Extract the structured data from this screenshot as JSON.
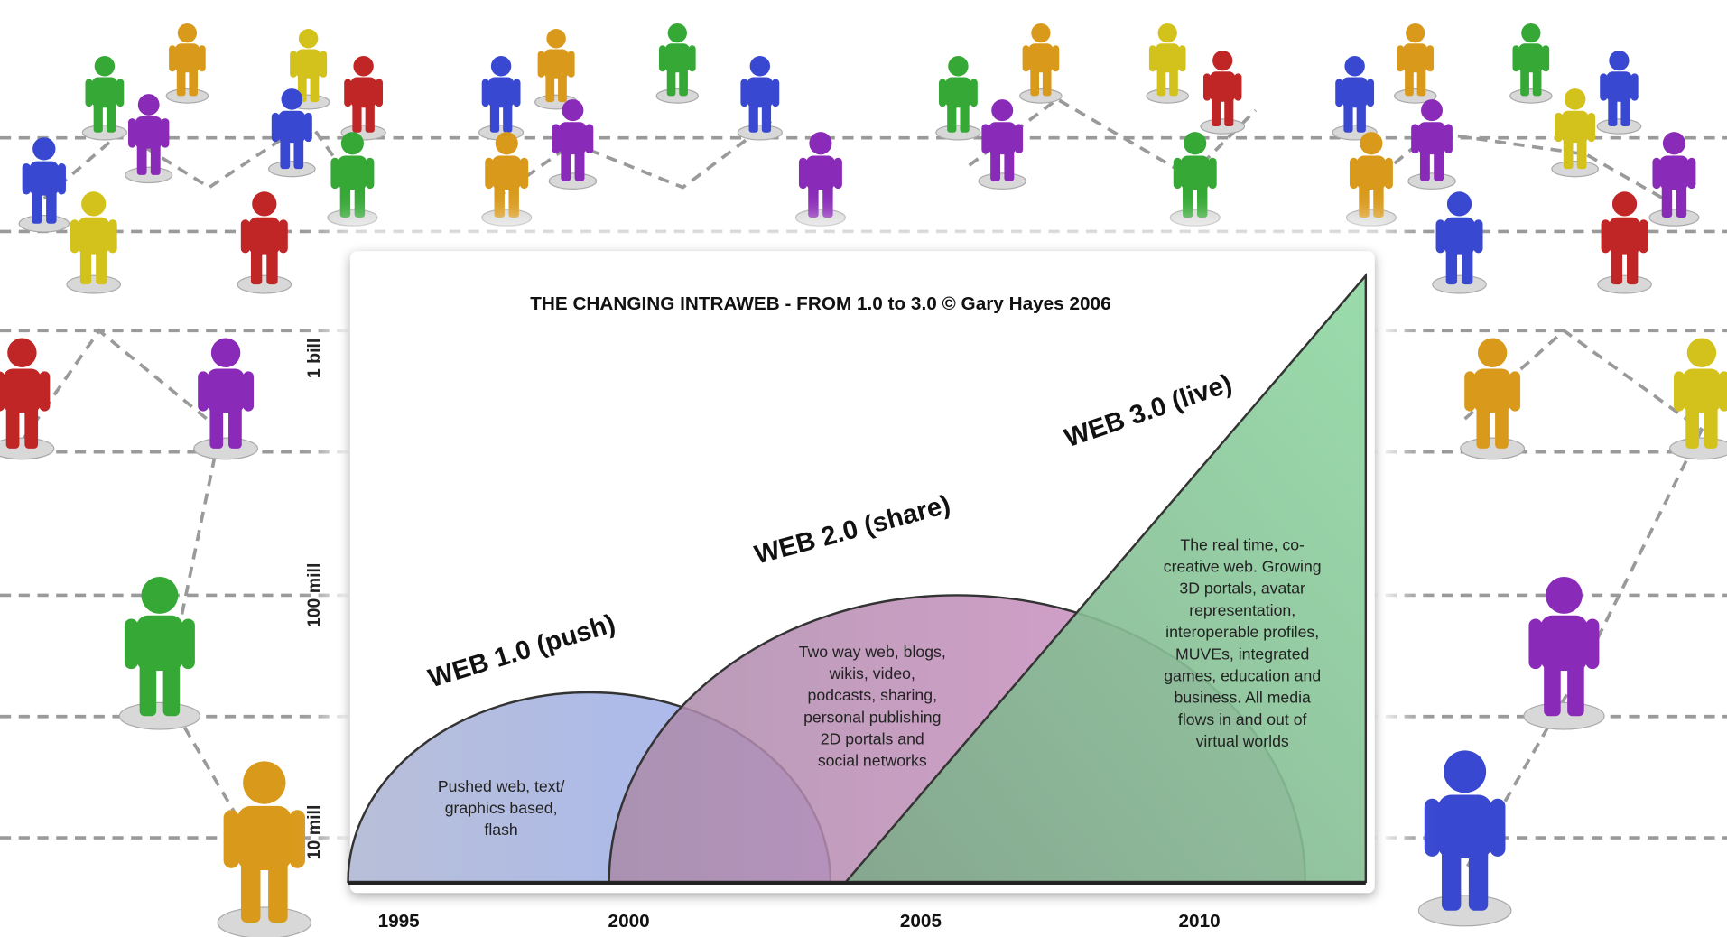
{
  "title": "THE CHANGING INTRAWEB - FROM 1.0 to 3.0 © Gary Hayes 2006",
  "y_labels": [
    "1 bill",
    "100 mill",
    "10 mill"
  ],
  "x_labels": [
    "1995",
    "2000",
    "2005",
    "2010"
  ],
  "phases": [
    {
      "label": "WEB 1.0 (push)",
      "description": [
        "Pushed web, text/",
        "graphics based,",
        "flash"
      ]
    },
    {
      "label": "WEB 2.0 (share)",
      "description": [
        "Two way web, blogs,",
        "wikis, video,",
        "podcasts, sharing,",
        "personal publishing",
        "2D portals and",
        "social networks"
      ]
    },
    {
      "label": "WEB 3.0 (live)",
      "description": [
        "The real time, co-",
        "creative web. Growing",
        "3D portals, avatar",
        "representation,",
        "interoperable profiles,",
        "MUVEs, integrated",
        "games, education and",
        "business. All media",
        "flows in and out of",
        "virtual worlds"
      ]
    }
  ]
}
